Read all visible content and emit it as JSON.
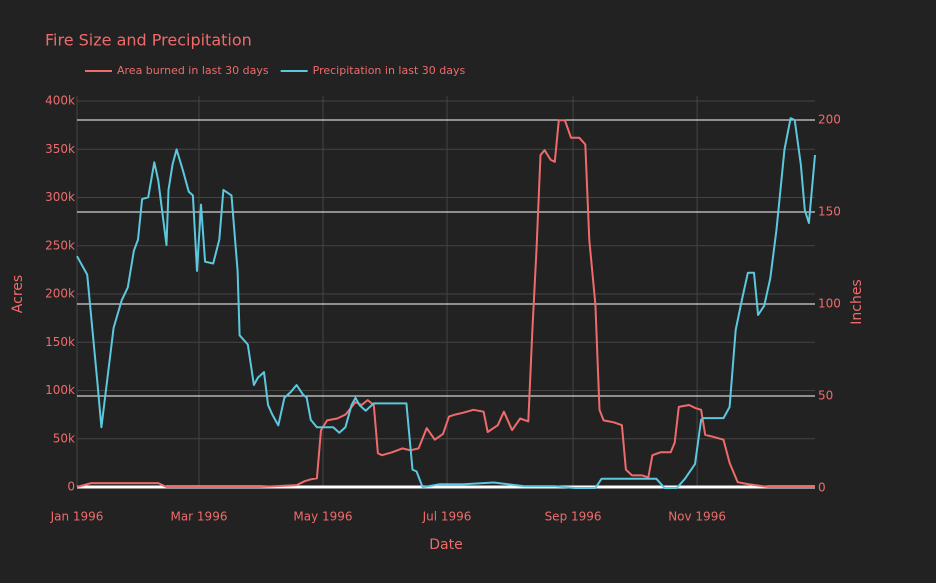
{
  "chart_data": {
    "type": "line",
    "title": "Fire Size and Precipitation",
    "xlabel": "Date",
    "ylabel": "Acres",
    "y2label": "Inches",
    "xlim": [
      0,
      363
    ],
    "xticks": [
      {
        "value": 0,
        "label": "Jan 1996"
      },
      {
        "value": 60,
        "label": "Mar 1996"
      },
      {
        "value": 121,
        "label": "May 1996"
      },
      {
        "value": 182,
        "label": "Jul 1996"
      },
      {
        "value": 244,
        "label": "Sep 1996"
      },
      {
        "value": 305,
        "label": "Nov 1996"
      }
    ],
    "ylim": [
      0,
      400000
    ],
    "yticks": [
      0,
      {
        "value": 50000,
        "label": "50k"
      },
      {
        "value": 100000,
        "label": "100k"
      },
      {
        "value": 150000,
        "label": "150k"
      },
      {
        "value": 200000,
        "label": "200k"
      },
      {
        "value": 250000,
        "label": "250k"
      },
      {
        "value": 300000,
        "label": "300k"
      },
      {
        "value": 350000,
        "label": "350k"
      },
      {
        "value": 400000,
        "label": "400k"
      }
    ],
    "y2lim": [
      0,
      210
    ],
    "y2ticks": [
      0,
      50,
      100,
      150,
      200
    ],
    "grid": true,
    "y2grid": true,
    "legend": "top-left",
    "series": [
      {
        "name": "Area burned in last 30 days",
        "color": "#ef6b6b",
        "x": [
          0,
          7,
          40,
          44,
          90,
          108,
          112,
          115,
          118,
          120,
          123,
          128,
          132,
          134,
          137,
          140,
          143,
          146,
          148,
          150,
          155,
          160,
          164,
          168,
          172,
          176,
          180,
          183,
          186,
          190,
          195,
          200,
          202,
          207,
          210,
          214,
          218,
          222,
          224,
          226,
          228,
          230,
          233,
          235,
          237,
          240,
          243,
          247,
          250,
          252,
          255,
          257,
          259,
          264,
          268,
          270,
          273,
          278,
          281,
          283,
          287,
          292,
          294,
          296,
          301,
          304,
          307,
          309,
          313,
          318,
          321,
          325,
          330,
          340,
          363
        ],
        "values": [
          0,
          4000,
          4000,
          0,
          0,
          2000,
          6000,
          8000,
          9000,
          59000,
          69000,
          71000,
          75000,
          80000,
          88000,
          85000,
          90000,
          85000,
          35000,
          33000,
          36000,
          40000,
          38000,
          40000,
          61000,
          49000,
          55000,
          73000,
          75000,
          77000,
          80000,
          78000,
          57000,
          64000,
          78000,
          59000,
          71000,
          68000,
          163000,
          246000,
          344000,
          349000,
          339000,
          337000,
          380000,
          380000,
          362000,
          362000,
          355000,
          256000,
          189000,
          80000,
          69000,
          67000,
          64000,
          18000,
          12000,
          12000,
          10000,
          33000,
          36000,
          36000,
          46000,
          83000,
          85000,
          82000,
          80000,
          54000,
          52000,
          49000,
          25000,
          5000,
          3000,
          0,
          0
        ]
      },
      {
        "name": "Precipitation in last 30 days",
        "color": "#5bc8de",
        "axis": "y2",
        "x": [
          0,
          5,
          10,
          12,
          15,
          18,
          22,
          25,
          28,
          30,
          32,
          35,
          38,
          40,
          44,
          45,
          47,
          49,
          52,
          55,
          57,
          59,
          61,
          63,
          67,
          70,
          72,
          76,
          79,
          80,
          84,
          87,
          89,
          92,
          94,
          96,
          99,
          102,
          105,
          108,
          111,
          113,
          115,
          118,
          120,
          123,
          126,
          129,
          132,
          135,
          137,
          139,
          142,
          146,
          150,
          154,
          158,
          162,
          165,
          167,
          170,
          173,
          178,
          190,
          205,
          212,
          220,
          235,
          245,
          255,
          258,
          265,
          275,
          285,
          289,
          295,
          299,
          304,
          307,
          308,
          318,
          321,
          324,
          327,
          330,
          333,
          335,
          338,
          341,
          344,
          348,
          351,
          353,
          356,
          358,
          360,
          363
        ],
        "values": [
          126,
          116,
          58,
          33,
          60,
          87,
          102,
          109,
          129,
          135,
          157,
          158,
          177,
          167,
          132,
          162,
          176,
          184,
          173,
          161,
          159,
          118,
          154,
          123,
          122,
          135,
          162,
          159,
          118,
          83,
          78,
          56,
          60,
          63,
          45,
          40,
          34,
          49,
          52,
          56,
          51,
          49,
          37,
          33,
          33,
          33,
          33,
          30,
          33,
          45,
          49,
          45,
          42,
          46,
          46,
          46,
          46,
          46,
          10,
          9,
          0.5,
          1,
          2,
          2,
          3,
          2,
          1,
          1,
          0,
          0,
          5,
          5,
          5,
          5,
          0,
          0,
          5,
          13,
          37,
          38,
          38,
          44,
          86,
          102,
          117,
          117,
          94,
          99,
          114,
          140,
          184,
          201,
          200,
          176,
          151,
          144,
          181
        ]
      }
    ]
  }
}
